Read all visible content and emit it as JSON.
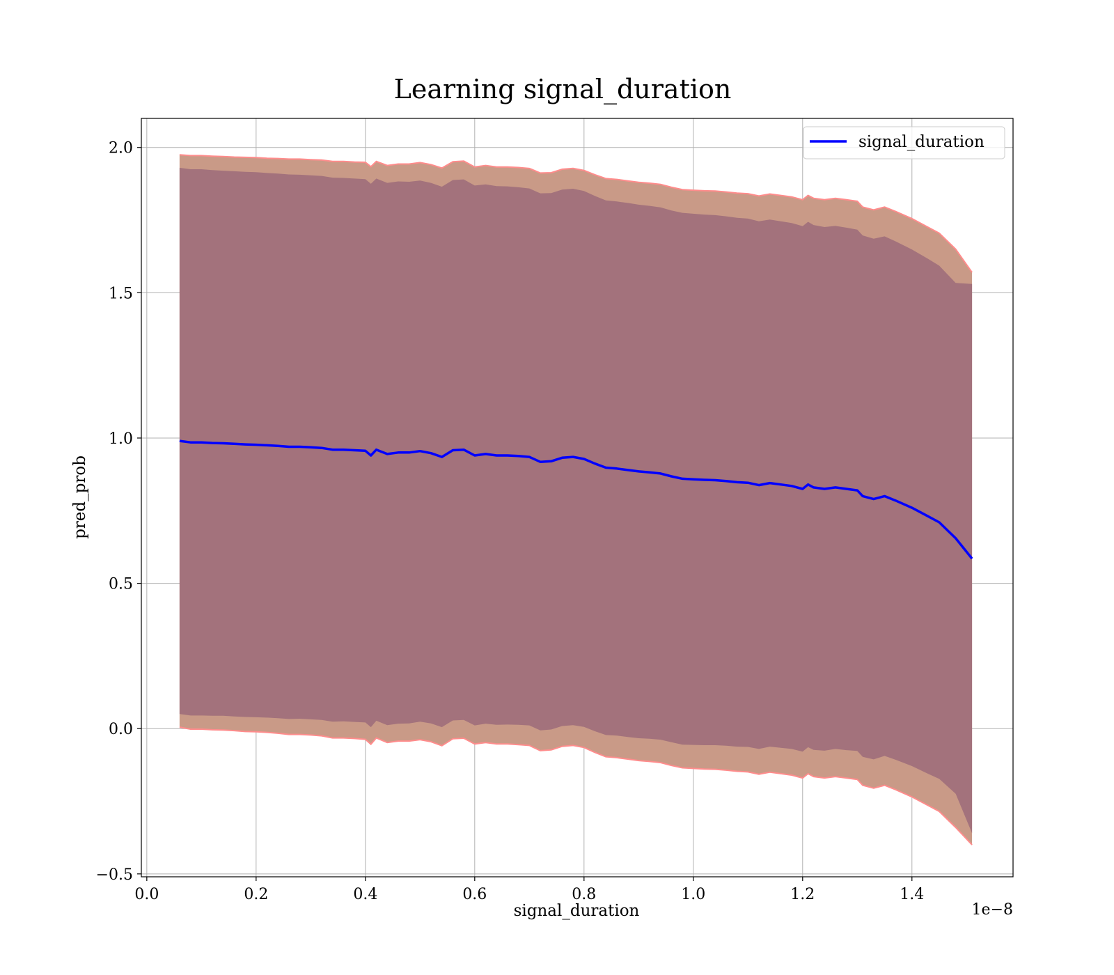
{
  "chart_data": {
    "type": "line",
    "title": "Learning signal_duration",
    "xlabel": "signal_duration",
    "ylabel": "pred_prob",
    "x_offset_text": "1e−8",
    "xlim": [
      -0.01,
      1.585
    ],
    "ylim": [
      -0.51,
      2.1
    ],
    "x_ticks": [
      0.0,
      0.2,
      0.4,
      0.6,
      0.8,
      1.0,
      1.2,
      1.4
    ],
    "x_tick_labels": [
      "0.0",
      "0.2",
      "0.4",
      "0.6",
      "0.8",
      "1.0",
      "1.2",
      "1.4"
    ],
    "y_ticks": [
      -0.5,
      0.0,
      0.5,
      1.0,
      1.5,
      2.0
    ],
    "y_tick_labels": [
      "−0.5",
      "0.0",
      "0.5",
      "1.0",
      "1.5",
      "2.0"
    ],
    "grid": true,
    "legend_position": "top-right",
    "colors": {
      "line": "#0000ff",
      "inner_band": "#a3727c",
      "outer_band": "#c99a87",
      "band_edge": "#ff8c8c",
      "grid": "#b0b0b0"
    },
    "series": [
      {
        "name": "signal_duration",
        "x": [
          0.06,
          0.08,
          0.1,
          0.12,
          0.14,
          0.16,
          0.18,
          0.2,
          0.22,
          0.24,
          0.26,
          0.28,
          0.3,
          0.32,
          0.34,
          0.36,
          0.38,
          0.4,
          0.41,
          0.42,
          0.44,
          0.46,
          0.48,
          0.5,
          0.52,
          0.54,
          0.56,
          0.58,
          0.6,
          0.62,
          0.64,
          0.66,
          0.68,
          0.7,
          0.72,
          0.74,
          0.76,
          0.78,
          0.8,
          0.82,
          0.84,
          0.86,
          0.88,
          0.9,
          0.92,
          0.94,
          0.96,
          0.98,
          1.0,
          1.02,
          1.04,
          1.06,
          1.08,
          1.1,
          1.12,
          1.14,
          1.16,
          1.18,
          1.2,
          1.21,
          1.22,
          1.24,
          1.26,
          1.28,
          1.3,
          1.31,
          1.33,
          1.35,
          1.37,
          1.4,
          1.43,
          1.45,
          1.48,
          1.51
        ],
        "y": [
          0.99,
          0.985,
          0.985,
          0.983,
          0.982,
          0.98,
          0.978,
          0.977,
          0.975,
          0.973,
          0.97,
          0.97,
          0.968,
          0.966,
          0.96,
          0.96,
          0.958,
          0.956,
          0.94,
          0.96,
          0.945,
          0.95,
          0.95,
          0.955,
          0.948,
          0.935,
          0.958,
          0.96,
          0.94,
          0.945,
          0.94,
          0.94,
          0.938,
          0.935,
          0.918,
          0.92,
          0.932,
          0.935,
          0.928,
          0.912,
          0.898,
          0.895,
          0.89,
          0.885,
          0.882,
          0.878,
          0.868,
          0.86,
          0.858,
          0.856,
          0.855,
          0.852,
          0.848,
          0.846,
          0.838,
          0.845,
          0.84,
          0.835,
          0.825,
          0.84,
          0.83,
          0.825,
          0.83,
          0.825,
          0.82,
          0.8,
          0.79,
          0.8,
          0.785,
          0.76,
          0.73,
          0.71,
          0.655,
          0.585
        ],
        "upper_inner": [
          1.93,
          1.925,
          1.925,
          1.922,
          1.92,
          1.918,
          1.916,
          1.915,
          1.912,
          1.91,
          1.907,
          1.906,
          1.904,
          1.902,
          1.896,
          1.895,
          1.893,
          1.891,
          1.875,
          1.893,
          1.878,
          1.883,
          1.882,
          1.886,
          1.878,
          1.865,
          1.888,
          1.89,
          1.869,
          1.873,
          1.867,
          1.866,
          1.863,
          1.859,
          1.842,
          1.843,
          1.855,
          1.858,
          1.85,
          1.833,
          1.818,
          1.814,
          1.809,
          1.803,
          1.799,
          1.794,
          1.783,
          1.775,
          1.772,
          1.769,
          1.767,
          1.763,
          1.758,
          1.755,
          1.746,
          1.752,
          1.746,
          1.74,
          1.729,
          1.744,
          1.733,
          1.726,
          1.73,
          1.724,
          1.717,
          1.697,
          1.686,
          1.694,
          1.677,
          1.649,
          1.616,
          1.593,
          1.534,
          1.53
        ],
        "lower_inner": [
          0.05,
          0.045,
          0.045,
          0.044,
          0.044,
          0.042,
          0.04,
          0.039,
          0.038,
          0.036,
          0.033,
          0.034,
          0.032,
          0.03,
          0.024,
          0.025,
          0.023,
          0.021,
          0.005,
          0.027,
          0.012,
          0.017,
          0.018,
          0.024,
          0.018,
          0.005,
          0.028,
          0.03,
          0.011,
          0.017,
          0.013,
          0.014,
          0.013,
          0.011,
          -0.006,
          -0.003,
          0.009,
          0.012,
          0.006,
          -0.009,
          -0.022,
          -0.024,
          -0.029,
          -0.033,
          -0.035,
          -0.038,
          -0.047,
          -0.055,
          -0.056,
          -0.057,
          -0.057,
          -0.059,
          -0.062,
          -0.063,
          -0.07,
          -0.062,
          -0.066,
          -0.07,
          -0.079,
          -0.064,
          -0.073,
          -0.076,
          -0.07,
          -0.074,
          -0.077,
          -0.097,
          -0.106,
          -0.094,
          -0.107,
          -0.129,
          -0.156,
          -0.173,
          -0.224,
          -0.36
        ],
        "upper_outer": [
          1.975,
          1.972,
          1.972,
          1.97,
          1.969,
          1.967,
          1.966,
          1.965,
          1.963,
          1.962,
          1.96,
          1.96,
          1.958,
          1.957,
          1.952,
          1.952,
          1.95,
          1.949,
          1.934,
          1.952,
          1.938,
          1.943,
          1.943,
          1.948,
          1.941,
          1.929,
          1.951,
          1.953,
          1.933,
          1.938,
          1.933,
          1.933,
          1.931,
          1.928,
          1.912,
          1.913,
          1.925,
          1.928,
          1.921,
          1.906,
          1.893,
          1.89,
          1.885,
          1.88,
          1.877,
          1.873,
          1.863,
          1.855,
          1.853,
          1.851,
          1.85,
          1.847,
          1.843,
          1.841,
          1.833,
          1.84,
          1.835,
          1.83,
          1.82,
          1.835,
          1.825,
          1.82,
          1.825,
          1.82,
          1.815,
          1.795,
          1.785,
          1.795,
          1.78,
          1.755,
          1.725,
          1.705,
          1.65,
          1.57
        ],
        "lower_outer": [
          0.005,
          -0.002,
          -0.002,
          -0.004,
          -0.005,
          -0.007,
          -0.01,
          -0.011,
          -0.013,
          -0.016,
          -0.02,
          -0.02,
          -0.022,
          -0.025,
          -0.032,
          -0.032,
          -0.034,
          -0.037,
          -0.054,
          -0.032,
          -0.048,
          -0.043,
          -0.043,
          -0.038,
          -0.045,
          -0.059,
          -0.035,
          -0.033,
          -0.053,
          -0.048,
          -0.053,
          -0.053,
          -0.055,
          -0.058,
          -0.076,
          -0.073,
          -0.061,
          -0.058,
          -0.065,
          -0.082,
          -0.097,
          -0.1,
          -0.105,
          -0.11,
          -0.113,
          -0.117,
          -0.127,
          -0.135,
          -0.137,
          -0.139,
          -0.14,
          -0.143,
          -0.147,
          -0.149,
          -0.157,
          -0.15,
          -0.155,
          -0.16,
          -0.17,
          -0.155,
          -0.165,
          -0.17,
          -0.165,
          -0.17,
          -0.175,
          -0.195,
          -0.205,
          -0.195,
          -0.21,
          -0.235,
          -0.265,
          -0.285,
          -0.34,
          -0.4
        ]
      }
    ]
  }
}
